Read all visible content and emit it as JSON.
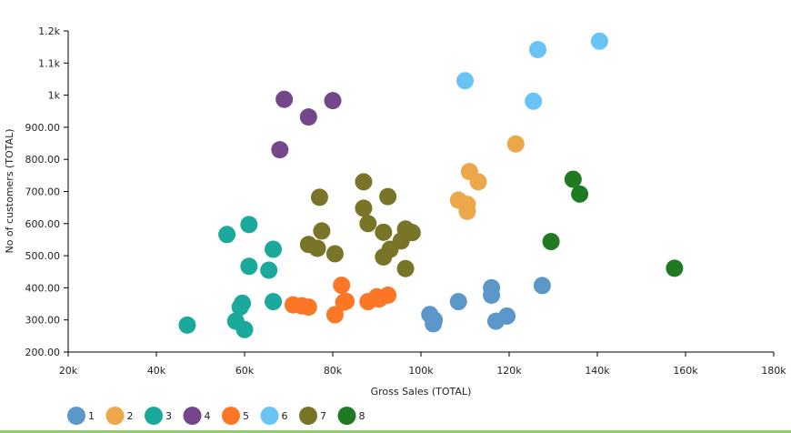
{
  "chart_data": {
    "type": "scatter",
    "title": "",
    "xlabel": "Gross Sales (TOTAL)",
    "ylabel": "No of customers (TOTAL)",
    "xlim": [
      20000,
      180000
    ],
    "ylim": [
      200,
      1200
    ],
    "x_ticks": [
      20000,
      40000,
      60000,
      80000,
      100000,
      120000,
      140000,
      160000,
      180000
    ],
    "x_tick_labels": [
      "20k",
      "40k",
      "60k",
      "80k",
      "100k",
      "120k",
      "140k",
      "160k",
      "180k"
    ],
    "y_ticks": [
      200,
      300,
      400,
      500,
      600,
      700,
      800,
      900,
      1000,
      1100,
      1200
    ],
    "y_tick_labels": [
      "200.00",
      "300.00",
      "400.00",
      "500.00",
      "600.00",
      "700.00",
      "800.00",
      "900.00",
      "1k",
      "1.1k",
      "1.2k"
    ],
    "grid": false,
    "legend_position": "bottom-left",
    "series": [
      {
        "name": "1",
        "color": "#5b97c9",
        "points": [
          [
            102000,
            317
          ],
          [
            102800,
            288
          ],
          [
            103000,
            300
          ],
          [
            108500,
            357
          ],
          [
            116000,
            400
          ],
          [
            116000,
            377
          ],
          [
            117000,
            296
          ],
          [
            119500,
            312
          ],
          [
            127500,
            407
          ]
        ]
      },
      {
        "name": "2",
        "color": "#eba749",
        "points": [
          [
            108500,
            673
          ],
          [
            110500,
            660
          ],
          [
            110500,
            638
          ],
          [
            111000,
            762
          ],
          [
            113000,
            730
          ],
          [
            121500,
            848
          ]
        ]
      },
      {
        "name": "3",
        "color": "#1aa99a",
        "points": [
          [
            47000,
            284
          ],
          [
            56000,
            566
          ],
          [
            58000,
            296
          ],
          [
            59000,
            340
          ],
          [
            59500,
            352
          ],
          [
            60000,
            270
          ],
          [
            61000,
            597
          ],
          [
            61000,
            467
          ],
          [
            65500,
            455
          ],
          [
            66500,
            520
          ],
          [
            66500,
            357
          ]
        ]
      },
      {
        "name": "4",
        "color": "#73478a",
        "points": [
          [
            68000,
            830
          ],
          [
            69000,
            987
          ],
          [
            74500,
            932
          ],
          [
            80000,
            983
          ]
        ]
      },
      {
        "name": "5",
        "color": "#fb7625",
        "points": [
          [
            71000,
            347
          ],
          [
            73000,
            344
          ],
          [
            74500,
            340
          ],
          [
            80500,
            316
          ],
          [
            82000,
            408
          ],
          [
            82500,
            355
          ],
          [
            83000,
            358
          ],
          [
            88000,
            357
          ],
          [
            90000,
            372
          ],
          [
            90500,
            365
          ],
          [
            92500,
            377
          ]
        ]
      },
      {
        "name": "6",
        "color": "#69c4f5",
        "points": [
          [
            110000,
            1045
          ],
          [
            125500,
            981
          ],
          [
            126500,
            1142
          ],
          [
            140500,
            1168
          ]
        ]
      },
      {
        "name": "7",
        "color": "#787428",
        "points": [
          [
            74500,
            535
          ],
          [
            76500,
            523
          ],
          [
            77000,
            682
          ],
          [
            77500,
            577
          ],
          [
            80500,
            506
          ],
          [
            87000,
            730
          ],
          [
            87000,
            648
          ],
          [
            88000,
            600
          ],
          [
            91500,
            573
          ],
          [
            91500,
            496
          ],
          [
            92500,
            684
          ],
          [
            93000,
            520
          ],
          [
            95500,
            546
          ],
          [
            96500,
            583
          ],
          [
            96500,
            460
          ],
          [
            98000,
            572
          ]
        ]
      },
      {
        "name": "8",
        "color": "#1f7a22",
        "points": [
          [
            129500,
            544
          ],
          [
            134500,
            738
          ],
          [
            136000,
            692
          ],
          [
            157500,
            461
          ]
        ]
      }
    ]
  }
}
